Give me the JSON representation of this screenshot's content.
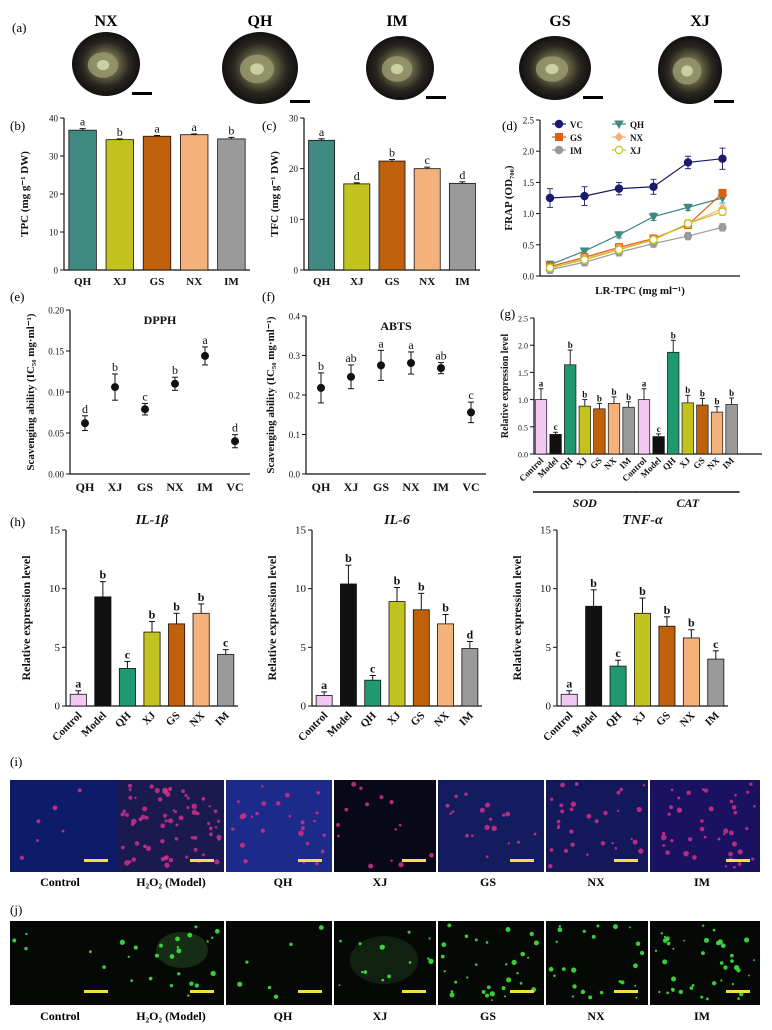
{
  "panel_labels": {
    "a": "(a)",
    "b": "(b)",
    "c": "(c)",
    "d": "(d)",
    "e": "(e)",
    "f": "(f)",
    "g": "(g)",
    "h": "(h)",
    "i": "(i)",
    "j": "(j)"
  },
  "photos": {
    "labels": [
      "NX",
      "QH",
      "IM",
      "GS",
      "XJ"
    ]
  },
  "colors": {
    "QH": "#3e8a80",
    "XJ": "#c3c320",
    "GS": "#c0600a",
    "NX": "#f4b27a",
    "IM": "#9a9a9a",
    "Control": "#f2c8f2",
    "Model": "#111111",
    "QH_g": "#1f9a6e",
    "VC": "#1a1a6e",
    "scale": "#f0e040"
  },
  "chart_data": [
    {
      "id": "b",
      "type": "bar",
      "ylabel": "TPC (mg g⁻¹ DW)",
      "categories": [
        "QH",
        "XJ",
        "GS",
        "NX",
        "IM"
      ],
      "values": [
        36.8,
        34.3,
        35.2,
        35.6,
        34.5
      ],
      "errors": [
        0.4,
        0.2,
        0.2,
        0.2,
        0.4
      ],
      "letters": [
        "a",
        "b",
        "a",
        "a",
        "b"
      ],
      "ylim": [
        0,
        40
      ],
      "yticks": [
        0,
        10,
        20,
        30,
        40
      ],
      "colors": [
        "#3e8a80",
        "#c3c320",
        "#c0600a",
        "#f4b27a",
        "#9a9a9a"
      ]
    },
    {
      "id": "c",
      "type": "bar",
      "ylabel": "TFC (mg g⁻¹ DW)",
      "categories": [
        "QH",
        "XJ",
        "GS",
        "NX",
        "IM"
      ],
      "values": [
        25.6,
        17.0,
        21.5,
        20.0,
        17.1
      ],
      "errors": [
        0.3,
        0.2,
        0.3,
        0.3,
        0.3
      ],
      "letters": [
        "a",
        "d",
        "b",
        "c",
        "d"
      ],
      "ylim": [
        0,
        30
      ],
      "yticks": [
        0,
        10,
        20,
        30
      ],
      "colors": [
        "#3e8a80",
        "#c3c320",
        "#c0600a",
        "#f4b27a",
        "#9a9a9a"
      ]
    },
    {
      "id": "d",
      "type": "line",
      "ylabel": "FRAP (OD₇₀₀)",
      "xlabel": "LR-TPC (mg ml⁻¹)",
      "ylim": [
        0,
        2.5
      ],
      "yticks": [
        0.0,
        0.5,
        1.0,
        1.5,
        2.0,
        2.5
      ],
      "x": [
        0,
        1,
        2,
        3,
        4,
        5
      ],
      "series": [
        {
          "name": "VC",
          "color": "#1a1a6e",
          "marker": "circle",
          "fill": true,
          "values": [
            1.25,
            1.28,
            1.4,
            1.43,
            1.82,
            1.88
          ],
          "errors": [
            0.15,
            0.15,
            0.1,
            0.12,
            0.1,
            0.17
          ]
        },
        {
          "name": "QH",
          "color": "#3e8a80",
          "marker": "triangle",
          "fill": true,
          "values": [
            0.18,
            0.4,
            0.66,
            0.95,
            1.1,
            1.25
          ],
          "errors": [
            0.06,
            0.05,
            0.05,
            0.06,
            0.05,
            0.08
          ]
        },
        {
          "name": "GS",
          "color": "#e06010",
          "marker": "square",
          "fill": true,
          "values": [
            0.15,
            0.3,
            0.46,
            0.6,
            0.82,
            1.33
          ],
          "errors": [
            0.07,
            0.06,
            0.06,
            0.06,
            0.06,
            0.06
          ]
        },
        {
          "name": "NX",
          "color": "#f4b27a",
          "marker": "diamond",
          "fill": true,
          "values": [
            0.12,
            0.28,
            0.44,
            0.58,
            0.84,
            1.08
          ],
          "errors": [
            0.06,
            0.06,
            0.06,
            0.06,
            0.06,
            0.06
          ]
        },
        {
          "name": "IM",
          "color": "#9a9a9a",
          "marker": "circle",
          "fill": true,
          "values": [
            0.1,
            0.22,
            0.38,
            0.52,
            0.64,
            0.78
          ],
          "errors": [
            0.06,
            0.06,
            0.06,
            0.06,
            0.06,
            0.06
          ]
        },
        {
          "name": "XJ",
          "color": "#c3c320",
          "marker": "circle",
          "fill": false,
          "values": [
            0.13,
            0.26,
            0.42,
            0.58,
            0.84,
            1.03
          ],
          "errors": [
            0.06,
            0.06,
            0.06,
            0.06,
            0.06,
            0.06
          ]
        }
      ]
    },
    {
      "id": "e",
      "type": "scatter",
      "title": "DPPH",
      "ylabel": "Scavenging ability (IC₅₀ mg·ml⁻¹)",
      "categories": [
        "QH",
        "XJ",
        "GS",
        "NX",
        "IM",
        "VC"
      ],
      "values": [
        0.062,
        0.106,
        0.079,
        0.11,
        0.144,
        0.04
      ],
      "errors": [
        0.009,
        0.016,
        0.007,
        0.008,
        0.011,
        0.008
      ],
      "letters": [
        "d",
        "b",
        "c",
        "b",
        "a",
        "d"
      ],
      "ylim": [
        0,
        0.2
      ],
      "yticks": [
        0.0,
        0.05,
        0.1,
        0.15,
        0.2
      ],
      "ytick_labels": [
        "0.00",
        "0.05",
        "0.10",
        "0.15",
        "0.20"
      ]
    },
    {
      "id": "f",
      "type": "scatter",
      "title": "ABTS",
      "ylabel": "Scavenging ability (IC₅₀ mg·ml⁻¹)",
      "categories": [
        "QH",
        "XJ",
        "GS",
        "NX",
        "IM",
        "VC"
      ],
      "values": [
        0.218,
        0.246,
        0.275,
        0.281,
        0.268,
        0.156
      ],
      "errors": [
        0.038,
        0.03,
        0.038,
        0.028,
        0.014,
        0.026
      ],
      "letters": [
        "b",
        "ab",
        "a",
        "a",
        "ab",
        "c"
      ],
      "ylim": [
        0,
        0.4
      ],
      "yticks": [
        0.0,
        0.1,
        0.2,
        0.3,
        0.4
      ],
      "ytick_labels": [
        "0.0",
        "0.1",
        "0.2",
        "0.3",
        "0.4"
      ]
    },
    {
      "id": "g",
      "type": "bar",
      "ylabel": "Relative expression level",
      "categories": [
        "Control",
        "Model",
        "QH",
        "XJ",
        "GS",
        "NX",
        "IM"
      ],
      "groups": [
        {
          "name": "SOD",
          "values": [
            1.0,
            0.36,
            1.64,
            0.88,
            0.83,
            0.93,
            0.86
          ],
          "errors": [
            0.2,
            0.04,
            0.27,
            0.12,
            0.1,
            0.12,
            0.1
          ],
          "letters": [
            "a",
            "c",
            "b",
            "b",
            "b",
            "b",
            "b"
          ]
        },
        {
          "name": "CAT",
          "values": [
            1.0,
            0.32,
            1.87,
            0.94,
            0.9,
            0.77,
            0.91
          ],
          "errors": [
            0.2,
            0.05,
            0.22,
            0.14,
            0.12,
            0.1,
            0.12
          ],
          "letters": [
            "a",
            "c",
            "b",
            "b",
            "b",
            "b",
            "b"
          ]
        }
      ],
      "ylim": [
        0,
        2.5
      ],
      "yticks": [
        0.0,
        0.5,
        1.0,
        1.5,
        2.0,
        2.5
      ],
      "ytick_labels": [
        "0.0",
        "0.5",
        "1.0",
        "1.5",
        "2.0",
        "2.5"
      ],
      "colors": [
        "#f2c8f2",
        "#111111",
        "#1f9a6e",
        "#c3c320",
        "#c0600a",
        "#f4b27a",
        "#9a9a9a"
      ]
    },
    {
      "id": "h1",
      "type": "bar",
      "title": "IL-1β",
      "ylabel": "Relative expression level",
      "categories": [
        "Control",
        "Model",
        "QH",
        "XJ",
        "GS",
        "NX",
        "IM"
      ],
      "values": [
        1.0,
        9.3,
        3.2,
        6.3,
        7.0,
        7.9,
        4.4
      ],
      "errors": [
        0.3,
        1.3,
        0.6,
        0.9,
        0.9,
        0.8,
        0.4
      ],
      "letters": [
        "a",
        "b",
        "c",
        "b",
        "b",
        "b",
        "c"
      ],
      "ylim": [
        0,
        15
      ],
      "yticks": [
        0,
        5,
        10,
        15
      ],
      "colors": [
        "#f2c8f2",
        "#111111",
        "#1f9a6e",
        "#c3c320",
        "#c0600a",
        "#f4b27a",
        "#9a9a9a"
      ]
    },
    {
      "id": "h2",
      "type": "bar",
      "title": "IL-6",
      "ylabel": "Relative expression level",
      "categories": [
        "Control",
        "Model",
        "QH",
        "XJ",
        "GS",
        "NX",
        "IM"
      ],
      "values": [
        0.9,
        10.4,
        2.2,
        8.9,
        8.2,
        7.0,
        4.9
      ],
      "errors": [
        0.3,
        1.6,
        0.4,
        1.2,
        1.4,
        0.8,
        0.6
      ],
      "letters": [
        "a",
        "b",
        "c",
        "b",
        "b",
        "b",
        "d"
      ],
      "ylim": [
        0,
        15
      ],
      "yticks": [
        0,
        5,
        10,
        15
      ],
      "colors": [
        "#f2c8f2",
        "#111111",
        "#1f9a6e",
        "#c3c320",
        "#c0600a",
        "#f4b27a",
        "#9a9a9a"
      ]
    },
    {
      "id": "h3",
      "type": "bar",
      "title": "TNF-α",
      "ylabel": "Relative expression level",
      "categories": [
        "Control",
        "Model",
        "QH",
        "XJ",
        "GS",
        "NX",
        "IM"
      ],
      "values": [
        1.0,
        8.5,
        3.4,
        7.9,
        6.8,
        5.8,
        4.0
      ],
      "errors": [
        0.3,
        1.4,
        0.5,
        1.3,
        0.8,
        0.7,
        0.7
      ],
      "letters": [
        "a",
        "b",
        "c",
        "b",
        "b",
        "b",
        "c"
      ],
      "ylim": [
        0,
        15
      ],
      "yticks": [
        0,
        5,
        10,
        15
      ],
      "colors": [
        "#f2c8f2",
        "#111111",
        "#1f9a6e",
        "#c3c320",
        "#c0600a",
        "#f4b27a",
        "#9a9a9a"
      ]
    }
  ],
  "micro_i": {
    "labels": [
      "Control",
      "H₂O₂ (Model)",
      "QH",
      "XJ",
      "GS",
      "NX",
      "IM"
    ]
  },
  "micro_j": {
    "labels": [
      "Control",
      "H₂O₂ (Model)",
      "QH",
      "XJ",
      "GS",
      "NX",
      "IM"
    ]
  }
}
